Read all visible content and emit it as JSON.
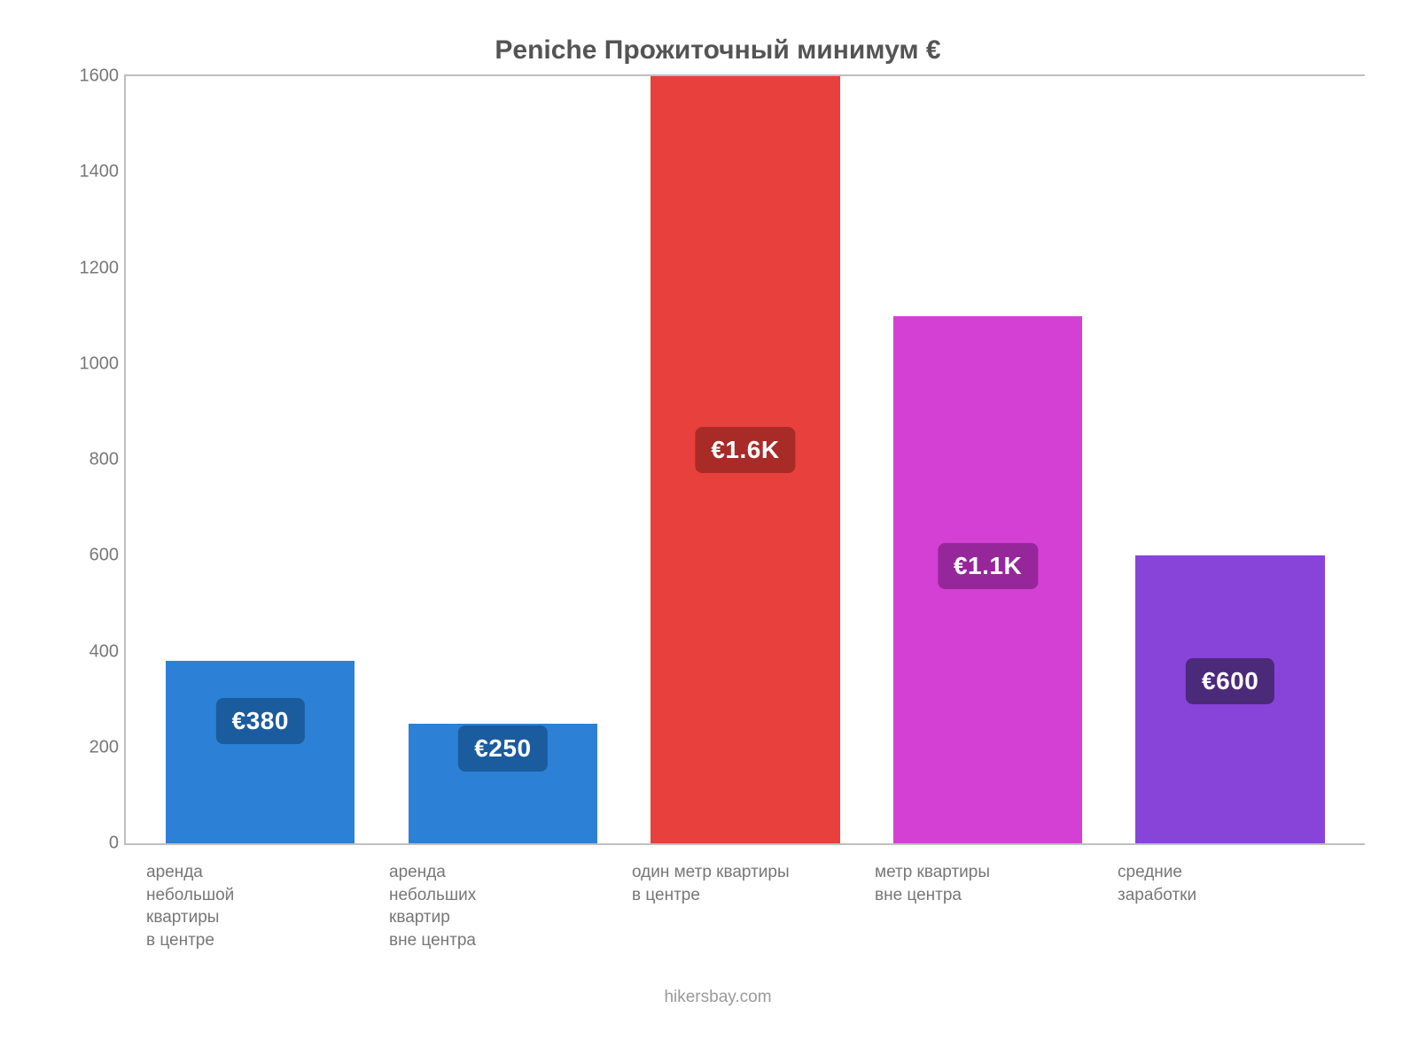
{
  "chart": {
    "type": "bar",
    "title": "Peniche Прожиточный минимум €",
    "title_fontsize": 30,
    "title_color": "#545454",
    "background_color": "#ffffff",
    "axis_color": "#bfbfbf",
    "tick_label_color": "#777777",
    "tick_fontsize": 20,
    "xlabel_fontsize": 19,
    "ylim": [
      0,
      1600
    ],
    "ytick_step": 200,
    "yticks": [
      0,
      200,
      400,
      600,
      800,
      1000,
      1200,
      1400,
      1600
    ],
    "bar_width": 0.78,
    "categories": [
      "аренда небольшой квартиры в центре",
      "аренда небольших квартир вне центра",
      "один метр квартиры в центре",
      "метр квартиры вне центра",
      "средние заработки"
    ],
    "values": [
      380,
      250,
      1600,
      1100,
      600
    ],
    "value_labels": [
      "€380",
      "€250",
      "€1.6K",
      "€1.1K",
      "€600"
    ],
    "bar_colors": [
      "#2c81d6",
      "#2c81d6",
      "#e8403c",
      "#d43fd4",
      "#8844d9"
    ],
    "badge_colors": [
      "#1a5c9e",
      "#1a5c9e",
      "#a82b28",
      "#96279a",
      "#4b2a7a"
    ],
    "badge_fontsize": 28,
    "badge_text_color": "#ffffff",
    "attribution": "hikersbay.com",
    "attribution_color": "#9a9a9a"
  }
}
